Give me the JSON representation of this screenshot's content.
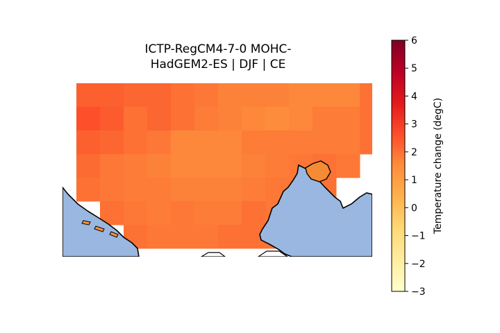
{
  "title_line1": "ICTP-RegCM4-7-0 MOHC-",
  "title_line2": "HadGEM2-ES | DJF | CE",
  "colorbar": {
    "label": "Temperature change (degC)",
    "min": -3,
    "max": 6,
    "ticks": [
      "6",
      "5",
      "4",
      "3",
      "2",
      "1",
      "0",
      "−1",
      "−2",
      "−3"
    ],
    "colormap": "YlOrRd",
    "colors": [
      "#ffffcc",
      "#ffeda0",
      "#fed976",
      "#feb24c",
      "#fd8d3c",
      "#fc4e2a",
      "#e31a1c",
      "#bd0026",
      "#800026"
    ]
  },
  "map": {
    "sea_color": "#99b7e0",
    "coast_color": "#000000",
    "grid_values": [
      [
        2.3,
        2.3,
        2.2,
        2.2,
        2.0,
        1.9,
        1.7,
        1.7,
        1.7,
        1.6,
        1.6,
        1.6,
        2.0
      ],
      [
        2.6,
        2.4,
        2.0,
        2.2,
        2.0,
        1.8,
        1.7,
        1.6,
        1.5,
        1.6,
        1.8,
        1.8,
        2.0
      ],
      [
        2.3,
        2.2,
        2.0,
        1.9,
        1.6,
        1.6,
        1.6,
        1.8,
        1.8,
        1.8,
        1.8,
        1.8,
        2.0
      ],
      [
        2.1,
        1.9,
        1.8,
        1.7,
        1.6,
        1.6,
        1.6,
        1.7,
        1.8,
        1.9,
        2.0,
        1.9,
        null
      ],
      [
        2.0,
        1.9,
        1.8,
        1.8,
        1.7,
        1.7,
        1.7,
        1.8,
        1.9,
        1.9,
        2.0,
        null,
        null
      ],
      [
        null,
        2.0,
        1.9,
        1.8,
        1.9,
        1.8,
        1.8,
        2.0,
        1.9,
        2.0,
        2.0,
        null,
        null
      ],
      [
        null,
        null,
        2.0,
        1.9,
        1.9,
        1.9,
        2.0,
        2.0,
        2.0,
        2.0,
        2.0,
        2.1,
        null
      ]
    ]
  }
}
